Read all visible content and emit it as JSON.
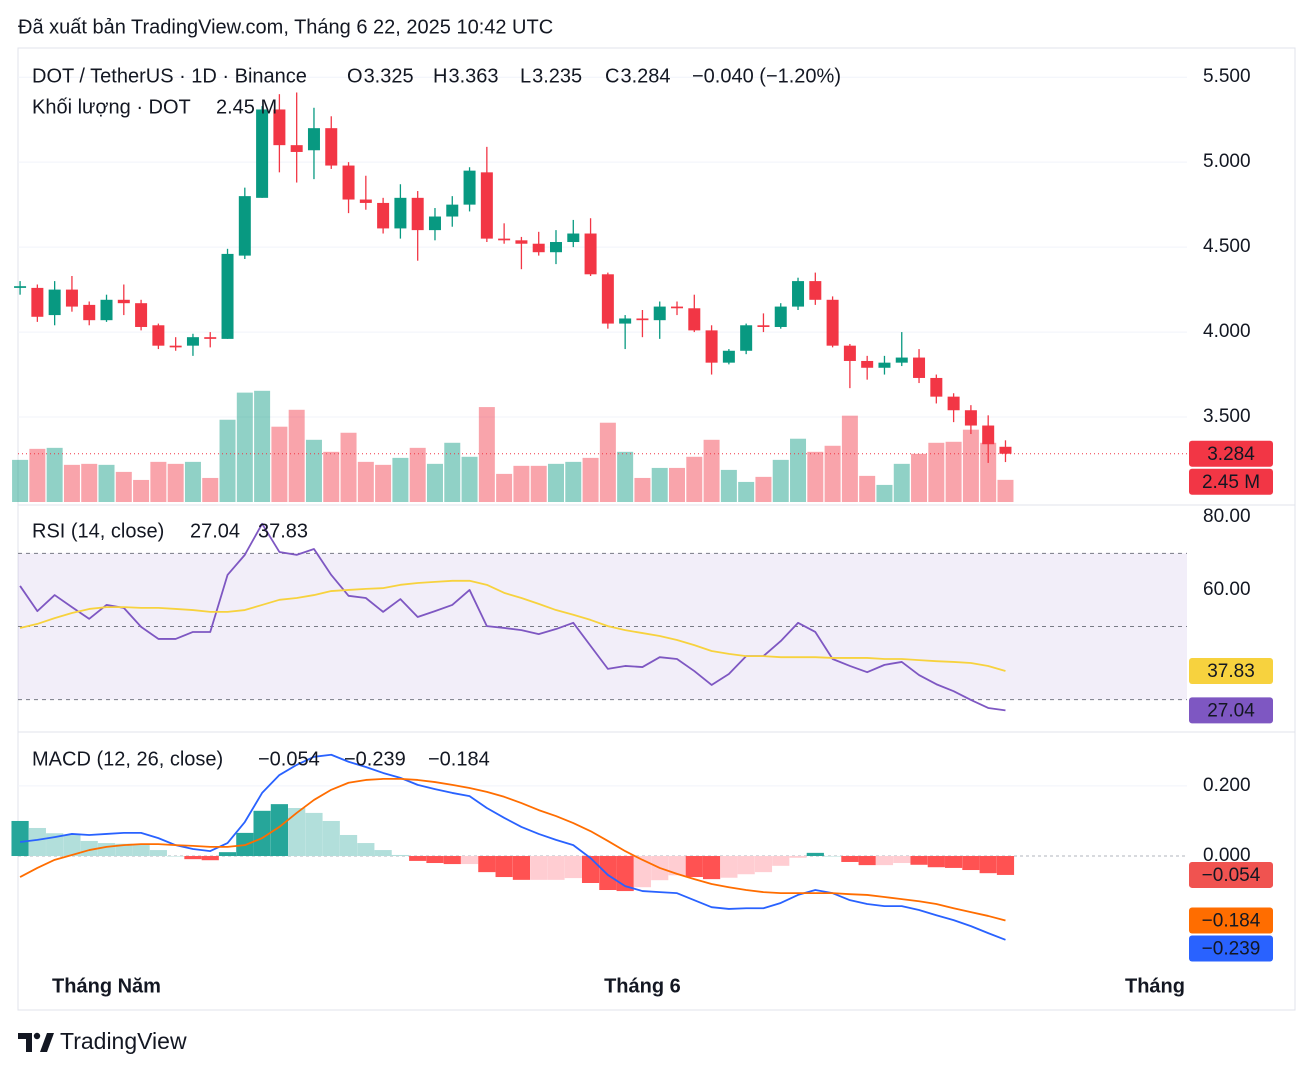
{
  "header": {
    "published": "Đã xuất bản TradingView.com, Tháng 6 22, 2025 10:42 UTC"
  },
  "footer": {
    "brand": "TradingView"
  },
  "chart_data": [
    {
      "type": "candlestick",
      "title": "DOT / TetherUS · 1D · Binance",
      "ohlc_letters": [
        "O",
        "H",
        "L",
        "C"
      ],
      "change": "−0.040 (−1.20%)",
      "xlim": [
        -0.12,
        67.5
      ],
      "xticks": [
        {
          "value": 5,
          "label": "Tháng Năm"
        },
        {
          "value": 36,
          "label": "Tháng 6"
        },
        {
          "value": 66,
          "label": "Tháng"
        }
      ],
      "ylim": [
        3.0,
        5.66
      ],
      "yticks": [
        {
          "value": 3.5,
          "label": "3.500"
        },
        {
          "value": 4.0,
          "label": "4.000"
        },
        {
          "value": 4.5,
          "label": "4.500"
        },
        {
          "value": 5.0,
          "label": "5.000"
        },
        {
          "value": 5.5,
          "label": "5.500"
        }
      ],
      "grid": true,
      "up_color": "#089981",
      "down_color": "#f23645",
      "open": [
        4.26,
        4.26,
        4.1,
        4.25,
        4.16,
        4.07,
        4.19,
        4.17,
        4.04,
        3.92,
        3.92,
        3.97,
        3.96,
        4.45,
        4.79,
        5.31,
        5.1,
        5.07,
        5.2,
        4.98,
        4.78,
        4.76,
        4.61,
        4.79,
        4.6,
        4.68,
        4.75,
        4.94,
        4.55,
        4.54,
        4.52,
        4.47,
        4.53,
        4.58,
        4.34,
        4.05,
        4.08,
        4.07,
        4.15,
        4.14,
        4.01,
        3.82,
        3.89,
        4.04,
        4.03,
        4.15,
        4.3,
        4.19,
        3.92,
        3.83,
        3.79,
        3.82,
        3.85,
        3.73,
        3.62,
        3.54,
        3.45,
        3.325
      ],
      "high": [
        4.3,
        4.28,
        4.3,
        4.33,
        4.18,
        4.22,
        4.28,
        4.19,
        4.05,
        3.97,
        3.99,
        4.0,
        4.49,
        4.85,
        5.33,
        5.4,
        5.41,
        5.32,
        5.27,
        5.0,
        4.92,
        4.79,
        4.87,
        4.83,
        4.73,
        4.8,
        4.97,
        5.09,
        4.64,
        4.56,
        4.59,
        4.6,
        4.66,
        4.67,
        4.35,
        4.1,
        4.13,
        4.18,
        4.18,
        4.22,
        4.04,
        3.9,
        4.05,
        4.11,
        4.17,
        4.32,
        4.35,
        4.21,
        3.93,
        3.86,
        3.86,
        4.0,
        3.9,
        3.75,
        3.64,
        3.57,
        3.51,
        3.363
      ],
      "low": [
        4.22,
        4.06,
        4.04,
        4.12,
        4.04,
        4.06,
        4.1,
        4.01,
        3.9,
        3.89,
        3.86,
        3.91,
        3.96,
        4.43,
        4.79,
        4.94,
        4.88,
        4.9,
        4.96,
        4.7,
        4.72,
        4.58,
        4.55,
        4.42,
        4.54,
        4.62,
        4.71,
        4.53,
        4.52,
        4.37,
        4.45,
        4.4,
        4.5,
        4.33,
        4.02,
        3.9,
        3.97,
        3.96,
        4.1,
        4.0,
        3.75,
        3.81,
        3.87,
        4.0,
        4.02,
        4.13,
        4.16,
        3.91,
        3.67,
        3.72,
        3.75,
        3.8,
        3.7,
        3.58,
        3.47,
        3.4,
        3.23,
        3.235
      ],
      "close": [
        4.27,
        4.09,
        4.25,
        4.15,
        4.07,
        4.19,
        4.17,
        4.03,
        3.92,
        3.91,
        3.97,
        3.96,
        4.46,
        4.8,
        5.31,
        5.1,
        5.06,
        5.2,
        4.98,
        4.78,
        4.76,
        4.61,
        4.79,
        4.6,
        4.68,
        4.75,
        4.95,
        4.55,
        4.54,
        4.52,
        4.47,
        4.53,
        4.58,
        4.34,
        4.05,
        4.08,
        4.07,
        4.15,
        4.14,
        4.01,
        3.82,
        3.89,
        4.04,
        4.03,
        4.15,
        4.3,
        4.19,
        3.92,
        3.83,
        3.79,
        3.82,
        3.85,
        3.73,
        3.62,
        3.54,
        3.45,
        3.34,
        3.284
      ],
      "volume_title": "Khối lượng · DOT",
      "volume": [
        4.66,
        5.88,
        5.99,
        4.11,
        4.22,
        4.11,
        3.33,
        2.44,
        4.44,
        4.22,
        4.44,
        2.66,
        9.1,
        12.1,
        12.3,
        8.33,
        10.2,
        6.88,
        5.55,
        7.66,
        4.44,
        4.11,
        4.88,
        5.99,
        4.22,
        6.55,
        5.0,
        10.5,
        3.11,
        4.0,
        4.0,
        4.22,
        4.44,
        4.88,
        8.77,
        5.55,
        2.66,
        3.77,
        3.77,
        5.0,
        6.88,
        3.55,
        2.22,
        2.78,
        4.66,
        7.0,
        5.55,
        6.22,
        9.55,
        2.89,
        1.89,
        4.22,
        5.33,
        6.55,
        6.66,
        8.0,
        6.55,
        2.45
      ],
      "volume_last_label": "2.45 M",
      "volume_ylim": [
        0,
        50
      ]
    },
    {
      "type": "rsi",
      "title": "RSI (14, close)",
      "ylim": [
        21.4,
        82.7
      ],
      "yticks": [
        {
          "value": 60,
          "label": "60.00"
        },
        {
          "value": 80,
          "label": "80.00"
        }
      ],
      "levels": [
        70,
        50,
        30
      ],
      "band": [
        30,
        70
      ],
      "band_color": "#7e57c2",
      "series": [
        {
          "color": "#7e57c2",
          "values": [
            61.1,
            54.2,
            58.6,
            55.3,
            52.1,
            55.9,
            55.1,
            49.9,
            46.6,
            46.6,
            48.5,
            48.5,
            64.1,
            69.6,
            78.1,
            70.4,
            69.6,
            71.2,
            64.1,
            58.4,
            57.8,
            54.0,
            57.5,
            52.6,
            54.2,
            55.9,
            60.0,
            50.1,
            49.6,
            49.0,
            47.9,
            49.3,
            51.0,
            44.7,
            38.4,
            39.2,
            38.9,
            41.6,
            41.1,
            37.8,
            34.0,
            37.0,
            41.9,
            41.9,
            46.0,
            51.0,
            48.5,
            41.1,
            39.2,
            37.5,
            39.5,
            40.3,
            36.7,
            34.2,
            32.3,
            29.9,
            27.7,
            27.04
          ]
        },
        {
          "color": "#f7d23e",
          "values": [
            49.6,
            50.7,
            52.3,
            53.7,
            54.8,
            55.3,
            55.3,
            55.1,
            55.1,
            54.8,
            54.5,
            54.0,
            54.0,
            54.5,
            55.9,
            57.3,
            57.8,
            58.6,
            59.7,
            60.0,
            60.3,
            60.5,
            61.4,
            61.9,
            62.2,
            62.5,
            62.5,
            61.4,
            59.2,
            57.8,
            56.2,
            54.5,
            53.2,
            51.8,
            50.1,
            49.0,
            48.2,
            47.4,
            46.3,
            44.9,
            43.3,
            42.5,
            41.9,
            41.9,
            41.6,
            41.6,
            41.6,
            41.4,
            41.4,
            41.4,
            41.1,
            41.1,
            40.8,
            40.5,
            40.3,
            40.0,
            39.2,
            37.83
          ]
        }
      ]
    },
    {
      "type": "macd",
      "title": "MACD (12, 26, close)",
      "ylim": [
        -0.291,
        0.351
      ],
      "yticks": [
        {
          "value": 0,
          "label": "0.000"
        },
        {
          "value": 0.2,
          "label": "0.200"
        }
      ],
      "histogram": {
        "colors": [
          "#26a69a",
          "#b2dfdb",
          "#ff5252",
          "#ffcdd2"
        ],
        "tag_color": "#f05350",
        "values": [
          0.1,
          0.08,
          0.065,
          0.06,
          0.043,
          0.037,
          0.035,
          0.032,
          0.017,
          0,
          -0.009,
          -0.012,
          0.011,
          0.066,
          0.129,
          0.148,
          0.137,
          0.123,
          0.1,
          0.06,
          0.037,
          0.017,
          0.003,
          -0.014,
          -0.02,
          -0.023,
          -0.023,
          -0.046,
          -0.06,
          -0.068,
          -0.068,
          -0.068,
          -0.063,
          -0.077,
          -0.097,
          -0.1,
          -0.089,
          -0.069,
          -0.055,
          -0.06,
          -0.066,
          -0.062,
          -0.052,
          -0.046,
          -0.028,
          -0.005,
          0.009,
          0,
          -0.017,
          -0.026,
          -0.026,
          -0.02,
          -0.025,
          -0.032,
          -0.034,
          -0.04,
          -0.049,
          -0.054
        ],
        "last_label": "−0.054"
      },
      "series": [
        {
          "color": "#2962ff",
          "last_label": "−0.239",
          "values": [
            0.04,
            0.046,
            0.054,
            0.063,
            0.06,
            0.063,
            0.066,
            0.066,
            0.051,
            0.031,
            0.02,
            0.014,
            0.037,
            0.097,
            0.18,
            0.231,
            0.26,
            0.283,
            0.289,
            0.269,
            0.254,
            0.237,
            0.223,
            0.203,
            0.191,
            0.18,
            0.171,
            0.137,
            0.109,
            0.083,
            0.063,
            0.046,
            0.031,
            -0.006,
            -0.054,
            -0.086,
            -0.1,
            -0.103,
            -0.106,
            -0.126,
            -0.146,
            -0.151,
            -0.149,
            -0.149,
            -0.134,
            -0.111,
            -0.097,
            -0.106,
            -0.126,
            -0.137,
            -0.143,
            -0.143,
            -0.154,
            -0.169,
            -0.183,
            -0.2,
            -0.22,
            -0.239
          ]
        },
        {
          "color": "#ff6d00",
          "last_label": "−0.184",
          "values": [
            -0.06,
            -0.034,
            -0.011,
            0.003,
            0.017,
            0.026,
            0.031,
            0.034,
            0.034,
            0.031,
            0.029,
            0.026,
            0.026,
            0.031,
            0.051,
            0.083,
            0.123,
            0.16,
            0.189,
            0.209,
            0.217,
            0.22,
            0.22,
            0.217,
            0.211,
            0.203,
            0.194,
            0.183,
            0.169,
            0.151,
            0.131,
            0.114,
            0.094,
            0.071,
            0.043,
            0.014,
            -0.011,
            -0.034,
            -0.051,
            -0.066,
            -0.08,
            -0.089,
            -0.097,
            -0.103,
            -0.106,
            -0.106,
            -0.106,
            -0.106,
            -0.109,
            -0.111,
            -0.117,
            -0.123,
            -0.129,
            -0.137,
            -0.149,
            -0.16,
            -0.171,
            -0.184
          ]
        }
      ]
    }
  ]
}
